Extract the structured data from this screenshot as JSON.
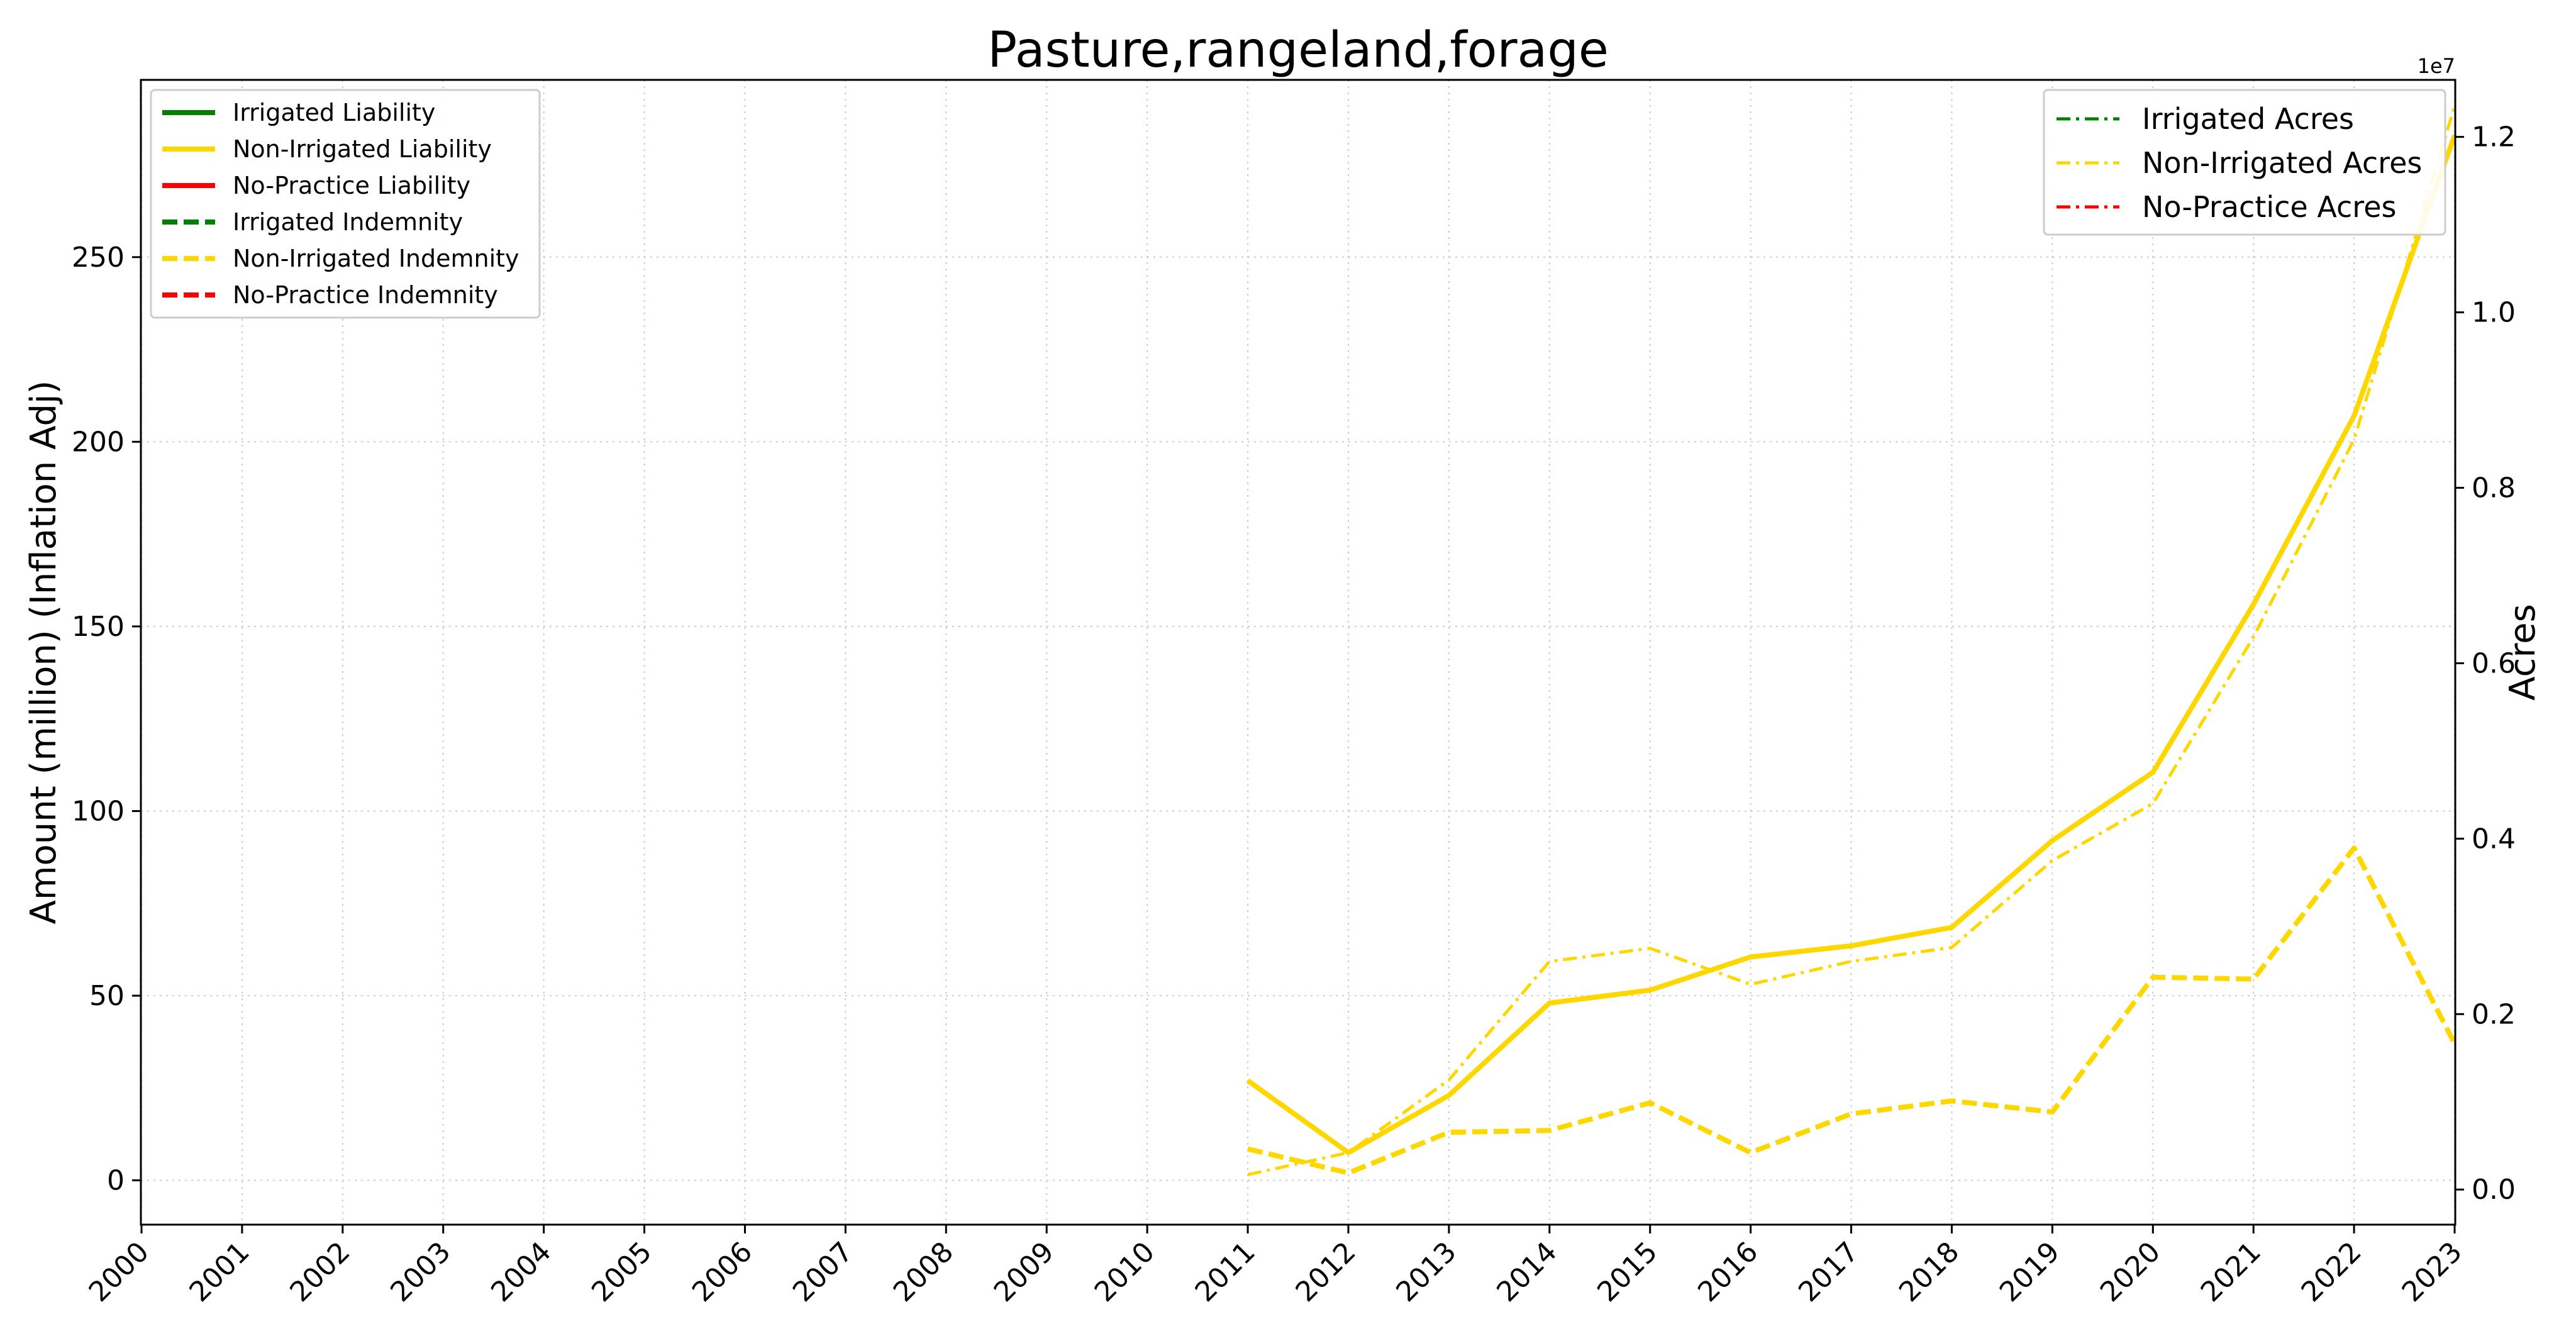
{
  "chart_data": {
    "type": "line",
    "title": "Pasture,rangeland,forage",
    "x": [
      2000,
      2001,
      2002,
      2003,
      2004,
      2005,
      2006,
      2007,
      2008,
      2009,
      2010,
      2011,
      2012,
      2013,
      2014,
      2015,
      2016,
      2017,
      2018,
      2019,
      2020,
      2021,
      2022,
      2023
    ],
    "xticklabels": [
      "2000",
      "2001",
      "2002",
      "2003",
      "2004",
      "2005",
      "2006",
      "2007",
      "2008",
      "2009",
      "2010",
      "2011",
      "2012",
      "2013",
      "2014",
      "2015",
      "2016",
      "2017",
      "2018",
      "2019",
      "2020",
      "2021",
      "2022",
      "2023"
    ],
    "ylabel": "Amount (million) (Inflation Adj)",
    "ylabel_right": "Acres",
    "ylim": [
      -12,
      298
    ],
    "ylim_right": [
      -400000,
      12650000
    ],
    "yticks": [
      0,
      50,
      100,
      150,
      200,
      250
    ],
    "yticklabels": [
      "0",
      "50",
      "100",
      "150",
      "200",
      "250"
    ],
    "yticks_right": [
      0,
      2000000,
      4000000,
      6000000,
      8000000,
      10000000,
      12000000
    ],
    "yticklabels_right": [
      "0.0",
      "0.2",
      "0.4",
      "0.6",
      "0.8",
      "1.0",
      "1.2"
    ],
    "right_axis_exponent": "1e7",
    "grid": true,
    "legend_left_position": "upper-left",
    "legend_right_position": "upper-right",
    "colors": {
      "irrigated": "#008000",
      "non_irrigated": "#FFD700",
      "no_practice": "#FF0000"
    },
    "series": [
      {
        "name": "Irrigated Liability",
        "axis": "left",
        "style": "solid",
        "color": "#008000",
        "x": [],
        "values": []
      },
      {
        "name": "Non-Irrigated Liability",
        "axis": "left",
        "style": "solid",
        "color": "#FFD700",
        "x": [
          2011,
          2012,
          2013,
          2014,
          2015,
          2016,
          2017,
          2018,
          2019,
          2020,
          2021,
          2022,
          2023
        ],
        "values": [
          27,
          7.5,
          23,
          48,
          51.5,
          60.5,
          63.5,
          68.5,
          92,
          110.5,
          156,
          207,
          283
        ]
      },
      {
        "name": "No-Practice Liability",
        "axis": "left",
        "style": "solid",
        "color": "#FF0000",
        "x": [],
        "values": []
      },
      {
        "name": "Irrigated Indemnity",
        "axis": "left",
        "style": "dashed",
        "color": "#008000",
        "x": [],
        "values": []
      },
      {
        "name": "Non-Irrigated Indemnity",
        "axis": "left",
        "style": "dashed",
        "color": "#FFD700",
        "x": [
          2011,
          2012,
          2013,
          2014,
          2015,
          2016,
          2017,
          2018,
          2019,
          2020,
          2021,
          2022,
          2023
        ],
        "values": [
          8.5,
          2,
          13,
          13.5,
          21,
          7.5,
          18,
          21.5,
          18.5,
          55,
          54.5,
          90,
          37
        ]
      },
      {
        "name": "No-Practice Indemnity",
        "axis": "left",
        "style": "dashed",
        "color": "#FF0000",
        "x": [],
        "values": []
      },
      {
        "name": "Irrigated Acres",
        "axis": "right",
        "style": "dashdot",
        "color": "#008000",
        "x": [],
        "values": []
      },
      {
        "name": "Non-Irrigated Acres",
        "axis": "right",
        "style": "dashdot",
        "color": "#FFD700",
        "x": [
          2011,
          2012,
          2013,
          2014,
          2015,
          2016,
          2017,
          2018,
          2019,
          2020,
          2021,
          2022,
          2023
        ],
        "values": [
          170000,
          420000,
          1250000,
          2600000,
          2750000,
          2340000,
          2600000,
          2760000,
          3750000,
          4400000,
          6300000,
          8550000,
          12350000
        ]
      },
      {
        "name": "No-Practice Acres",
        "axis": "right",
        "style": "dashdot",
        "color": "#FF0000",
        "x": [],
        "values": []
      }
    ]
  }
}
